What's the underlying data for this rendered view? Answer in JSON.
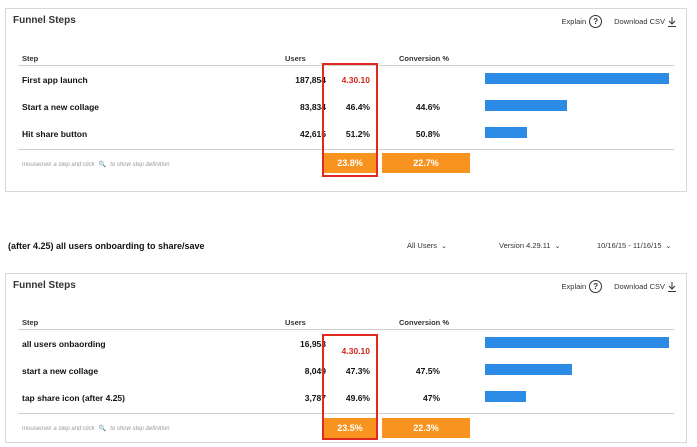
{
  "panels": [
    {
      "title": "Funnel Steps",
      "explain_label": "Explain",
      "help_glyph": "?",
      "download_label": "Download CSV",
      "columns": {
        "step": "Step",
        "users": "Users",
        "conversion": "Conversion %"
      },
      "rows": [
        {
          "step": "First app launch",
          "users": "187,854",
          "step_pct": "4.30.10",
          "conversion": "",
          "bar_fraction": 1.0
        },
        {
          "step": "Start a new collage",
          "users": "83,834",
          "step_pct": "46.4%",
          "conversion": "44.6%",
          "bar_fraction": 0.446
        },
        {
          "step": "Hit share button",
          "users": "42,615",
          "step_pct": "51.2%",
          "conversion": "50.8%",
          "bar_fraction": 0.227
        }
      ],
      "hint_before": "mouseover a step and click",
      "hint_after": "to show step definition",
      "totals": {
        "step_total": "23.8%",
        "conversion_total": "22.7%"
      }
    },
    {
      "title": "Funnel Steps",
      "explain_label": "Explain",
      "help_glyph": "?",
      "download_label": "Download CSV",
      "columns": {
        "step": "Step",
        "users": "Users",
        "conversion": "Conversion %"
      },
      "rows": [
        {
          "step": "all users onbaording",
          "users": "16,953",
          "step_pct": "4.30.10",
          "conversion": "",
          "bar_fraction": 1.0
        },
        {
          "step": "start a new collage",
          "users": "8,049",
          "step_pct": "47.3%",
          "conversion": "47.5%",
          "bar_fraction": 0.475
        },
        {
          "step": "tap share icon (after 4.25)",
          "users": "3,787",
          "step_pct": "49.6%",
          "conversion": "47%",
          "bar_fraction": 0.223
        }
      ],
      "hint_before": "mouseover a step and click",
      "hint_after": "to show step definition",
      "totals": {
        "step_total": "23.5%",
        "conversion_total": "22.3%"
      }
    }
  ],
  "section": {
    "title": "(after 4.25) all users onboarding to share/save",
    "filters": {
      "users": "All Users",
      "version": "Version 4.29.11",
      "date_range": "10/16/15 - 11/16/15"
    }
  },
  "colors": {
    "bar": "#2b8be5",
    "orange": "#f7931e",
    "annotation_red": "#e02a20"
  }
}
